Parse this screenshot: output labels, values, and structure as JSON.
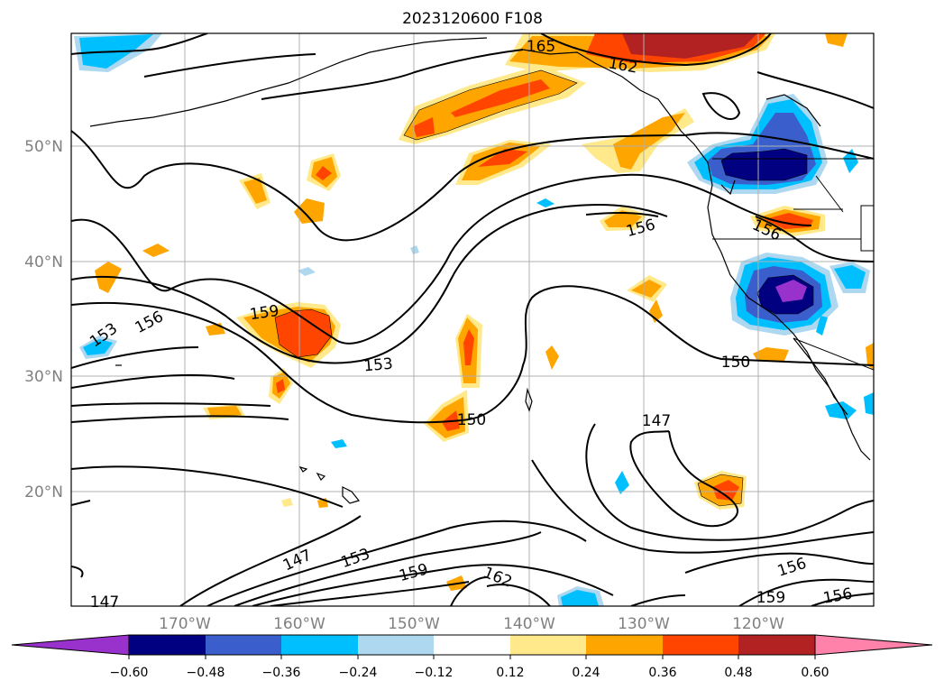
{
  "title": "2023120600 F108",
  "lat_labels": [
    "50°N",
    "40°N",
    "30°N",
    "20°N"
  ],
  "lon_labels": [
    "170°W",
    "160°W",
    "150°W",
    "140°W",
    "130°W",
    "120°W"
  ],
  "colorbar": {
    "tick_labels": [
      "−0.60",
      "−0.48",
      "−0.36",
      "−0.24",
      "−0.12",
      "0.12",
      "0.24",
      "0.36",
      "0.48",
      "0.60"
    ],
    "colors": [
      "#9932cc",
      "#000080",
      "#3a5fcd",
      "#00bfff",
      "#add8f0",
      "#ffffff",
      "#ffe98a",
      "#ffa500",
      "#ff4500",
      "#b22222",
      "#ff82ab"
    ]
  },
  "contour_labels": [
    "165",
    "162",
    "156",
    "159",
    "153",
    "153",
    "150",
    "156",
    "150",
    "147",
    "147",
    "153",
    "159",
    "162",
    "156",
    "156",
    "159",
    "156",
    "147"
  ]
}
